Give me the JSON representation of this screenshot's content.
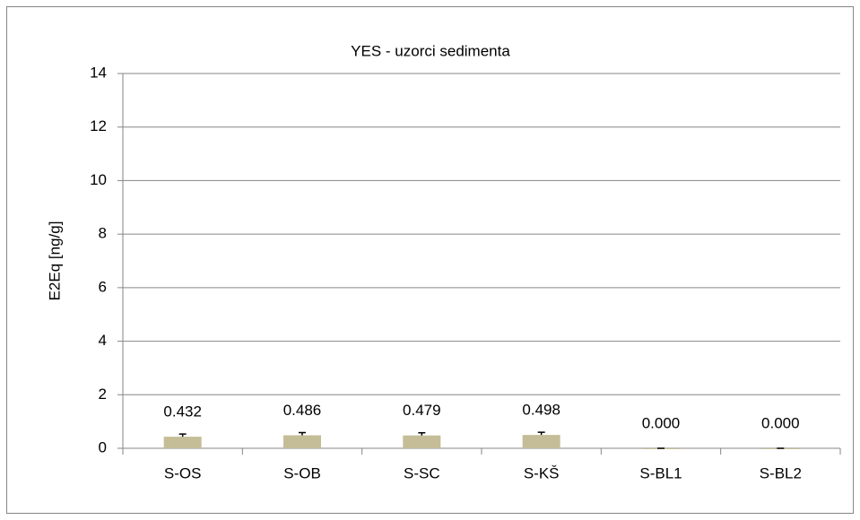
{
  "chart_data": {
    "type": "bar",
    "title": "YES - uzorci sedimenta",
    "y_label": "E2Eq [ng/g]",
    "categories": [
      "S-OS",
      "S-OB",
      "S-SC",
      "S-KŠ",
      "S-BL1",
      "S-BL2"
    ],
    "values": [
      0.432,
      0.486,
      0.479,
      0.498,
      0,
      0
    ],
    "value_labels": [
      "0.432",
      "0.486",
      "0.479",
      "0.498",
      "0.000",
      "0.000"
    ],
    "errors": [
      0.1,
      0.1,
      0.1,
      0.1,
      0,
      0
    ],
    "color": "#c4bd97",
    "ylim": [
      0,
      14
    ],
    "yticks": [
      0,
      2,
      4,
      6,
      8,
      10,
      12,
      14
    ],
    "grid": true
  }
}
